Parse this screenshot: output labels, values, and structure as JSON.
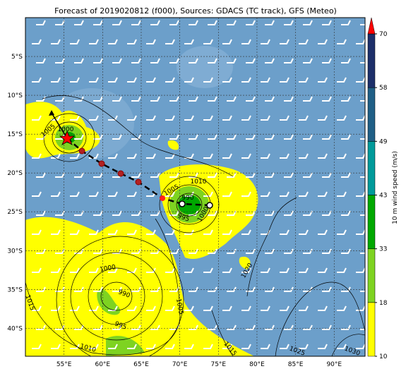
{
  "title": "Forecast of 2019020812 (f000), Sources: GDACS (TC track), GFS (Meteo)",
  "map": {
    "xlim": [
      50,
      94
    ],
    "ylim": [
      -43.6,
      0
    ],
    "xticks": [
      {
        "value": 55,
        "label": "55°E"
      },
      {
        "value": 60,
        "label": "60°E"
      },
      {
        "value": 65,
        "label": "65°E"
      },
      {
        "value": 70,
        "label": "70°E"
      },
      {
        "value": 75,
        "label": "75°E"
      },
      {
        "value": 80,
        "label": "80°E"
      },
      {
        "value": 85,
        "label": "85°E"
      },
      {
        "value": 90,
        "label": "90°E"
      }
    ],
    "yticks": [
      {
        "value": -5,
        "label": "5°S"
      },
      {
        "value": -10,
        "label": "10°S"
      },
      {
        "value": -15,
        "label": "15°S"
      },
      {
        "value": -20,
        "label": "20°S"
      },
      {
        "value": -25,
        "label": "25°S"
      },
      {
        "value": -30,
        "label": "30°S"
      },
      {
        "value": -35,
        "label": "35°S"
      },
      {
        "value": -40,
        "label": "40°S"
      }
    ],
    "isobar_labels": [
      1005,
      1000,
      1010,
      1005,
      990,
      995,
      1000,
      1000,
      990,
      995,
      1010,
      1015,
      1005,
      1020,
      1015,
      1025,
      1030
    ]
  },
  "colorbar": {
    "label": "10 m wind speed (m/s)",
    "ticks": [
      10,
      18,
      33,
      43,
      49,
      58,
      70
    ],
    "colors": [
      "#ffff00",
      "#7ed321",
      "#00a800",
      "#009a9a",
      "#1f5f86",
      "#1c2f6a"
    ],
    "extend_color": "#ff0000"
  }
}
